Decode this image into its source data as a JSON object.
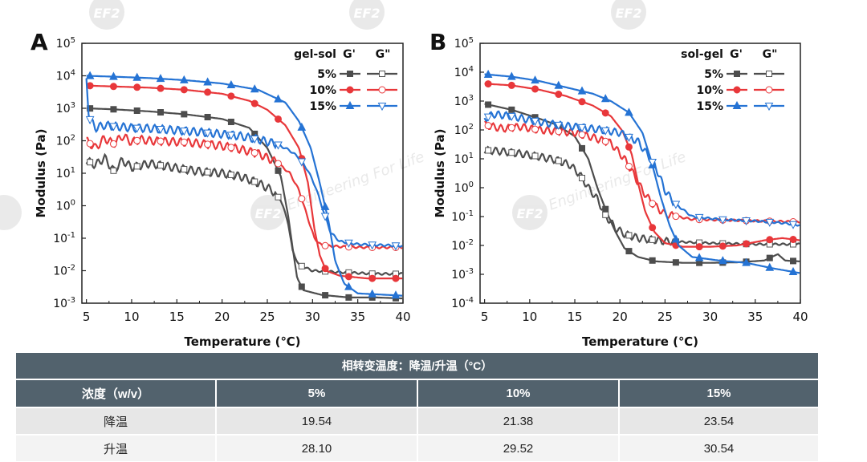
{
  "chart_data": [
    {
      "panel_label": "A",
      "type": "line",
      "xlabel": "Temperature (℃)",
      "ylabel": "Modulus (Pa)",
      "xlim": [
        4.5,
        40
      ],
      "xticks": [
        "5",
        "10",
        "15",
        "20",
        "25",
        "30",
        "35",
        "40"
      ],
      "ylim_log10": [
        -3,
        5
      ],
      "yticks": [
        {
          "base": "10",
          "exp": "5"
        },
        {
          "base": "10",
          "exp": "4"
        },
        {
          "base": "10",
          "exp": "3"
        },
        {
          "base": "10",
          "exp": "2"
        },
        {
          "base": "10",
          "exp": "1"
        },
        {
          "base": "10",
          "exp": "0"
        },
        {
          "base": "10",
          "exp": "-1"
        },
        {
          "base": "10",
          "exp": "-2"
        },
        {
          "base": "10",
          "exp": "-3"
        }
      ],
      "legend_title": "gel-sol",
      "legend_cols": [
        "G'",
        "G\""
      ],
      "series": [
        {
          "name": "5%",
          "color": "#4d4d4d",
          "gp": [
            [
              5,
              1000
            ],
            [
              8,
              930
            ],
            [
              12,
              800
            ],
            [
              16,
              650
            ],
            [
              20,
              470
            ],
            [
              23,
              250
            ],
            [
              25,
              60
            ],
            [
              26.5,
              8
            ],
            [
              27.3,
              0.5
            ],
            [
              27.8,
              0.05
            ],
            [
              28.3,
              0.006
            ],
            [
              29,
              0.0025
            ],
            [
              31,
              0.0018
            ],
            [
              34,
              0.0015
            ],
            [
              37,
              0.0015
            ],
            [
              40,
              0.0014
            ]
          ],
          "gpp": [
            [
              5,
              25
            ],
            [
              6,
              18
            ],
            [
              7,
              30
            ],
            [
              8,
              12
            ],
            [
              9,
              25
            ],
            [
              10,
              15
            ],
            [
              12,
              20
            ],
            [
              14,
              16
            ],
            [
              16,
              13
            ],
            [
              18,
              11
            ],
            [
              20,
              10
            ],
            [
              22,
              8
            ],
            [
              24,
              5
            ],
            [
              25.5,
              3
            ],
            [
              26.5,
              1.5
            ],
            [
              27.3,
              0.3
            ],
            [
              27.8,
              0.04
            ],
            [
              28.5,
              0.015
            ],
            [
              30,
              0.01
            ],
            [
              33,
              0.009
            ],
            [
              37,
              0.008
            ],
            [
              40,
              0.008
            ]
          ]
        },
        {
          "name": "10%",
          "color": "#e8373a",
          "gp": [
            [
              5,
              5000
            ],
            [
              8,
              4700
            ],
            [
              12,
              4300
            ],
            [
              16,
              3700
            ],
            [
              20,
              2800
            ],
            [
              23,
              1700
            ],
            [
              25,
              900
            ],
            [
              27,
              300
            ],
            [
              28.5,
              60
            ],
            [
              29.5,
              5
            ],
            [
              30.2,
              0.2
            ],
            [
              30.8,
              0.03
            ],
            [
              31.5,
              0.01
            ],
            [
              33,
              0.007
            ],
            [
              36,
              0.0058
            ],
            [
              40,
              0.0058
            ]
          ],
          "gpp": [
            [
              5,
              100
            ],
            [
              6,
              60
            ],
            [
              7,
              120
            ],
            [
              8,
              80
            ],
            [
              9,
              140
            ],
            [
              10,
              90
            ],
            [
              11,
              110
            ],
            [
              12,
              100
            ],
            [
              14,
              95
            ],
            [
              16,
              90
            ],
            [
              18,
              80
            ],
            [
              20,
              70
            ],
            [
              22,
              55
            ],
            [
              24,
              40
            ],
            [
              26,
              22
            ],
            [
              27.5,
              10
            ],
            [
              28.5,
              3
            ],
            [
              29.5,
              0.4
            ],
            [
              30.2,
              0.1
            ],
            [
              31,
              0.06
            ],
            [
              33,
              0.055
            ],
            [
              36,
              0.052
            ],
            [
              40,
              0.052
            ]
          ]
        },
        {
          "name": "15%",
          "color": "#2573d4",
          "gp": [
            [
              5,
              10000
            ],
            [
              8,
              9400
            ],
            [
              12,
              8500
            ],
            [
              16,
              7300
            ],
            [
              20,
              5800
            ],
            [
              24,
              3700
            ],
            [
              27,
              1500
            ],
            [
              28.5,
              400
            ],
            [
              29.8,
              60
            ],
            [
              30.8,
              5
            ],
            [
              31.8,
              0.3
            ],
            [
              32.5,
              0.02
            ],
            [
              33.5,
              0.004
            ],
            [
              35,
              0.002
            ],
            [
              40,
              0.0017
            ]
          ],
          "gpp": [
            [
              5,
              8000
            ],
            [
              5.3,
              500
            ],
            [
              6,
              250
            ],
            [
              7,
              300
            ],
            [
              8,
              280
            ],
            [
              10,
              250
            ],
            [
              12,
              240
            ],
            [
              14,
              220
            ],
            [
              16,
              200
            ],
            [
              18,
              180
            ],
            [
              20,
              160
            ],
            [
              22,
              140
            ],
            [
              24,
              110
            ],
            [
              26,
              80
            ],
            [
              27.5,
              50
            ],
            [
              28.5,
              30
            ],
            [
              29.5,
              12
            ],
            [
              30.3,
              4
            ],
            [
              31.2,
              0.7
            ],
            [
              32,
              0.15
            ],
            [
              33,
              0.08
            ],
            [
              35,
              0.065
            ],
            [
              40,
              0.058
            ]
          ]
        }
      ]
    },
    {
      "panel_label": "B",
      "type": "line",
      "xlabel": "Temperature (℃)",
      "ylabel": "Modulus (Pa)",
      "xlim": [
        4.5,
        40
      ],
      "xticks": [
        "5",
        "10",
        "15",
        "20",
        "25",
        "30",
        "35",
        "40"
      ],
      "ylim_log10": [
        -4,
        5
      ],
      "yticks": [
        {
          "base": "10",
          "exp": "5"
        },
        {
          "base": "10",
          "exp": "4"
        },
        {
          "base": "10",
          "exp": "3"
        },
        {
          "base": "10",
          "exp": "2"
        },
        {
          "base": "10",
          "exp": "1"
        },
        {
          "base": "10",
          "exp": "0"
        },
        {
          "base": "10",
          "exp": "-1"
        },
        {
          "base": "10",
          "exp": "-2"
        },
        {
          "base": "10",
          "exp": "-3"
        },
        {
          "base": "10",
          "exp": "-4"
        }
      ],
      "legend_title": "sol-gel",
      "legend_cols": [
        "G'",
        "G\""
      ],
      "series": [
        {
          "name": "5%",
          "color": "#4d4d4d",
          "gp": [
            [
              5,
              800
            ],
            [
              8,
              500
            ],
            [
              11,
              250
            ],
            [
              13,
              150
            ],
            [
              15,
              60
            ],
            [
              16.5,
              10
            ],
            [
              17.5,
              1
            ],
            [
              18.5,
              0.15
            ],
            [
              19.5,
              0.03
            ],
            [
              20.5,
              0.008
            ],
            [
              22,
              0.004
            ],
            [
              24,
              0.0028
            ],
            [
              27,
              0.0025
            ],
            [
              30,
              0.0025
            ],
            [
              33,
              0.0026
            ],
            [
              36,
              0.003
            ],
            [
              37.5,
              0.005
            ],
            [
              38.3,
              0.003
            ],
            [
              40,
              0.0028
            ]
          ],
          "gpp": [
            [
              5,
              20
            ],
            [
              7,
              18
            ],
            [
              9,
              15
            ],
            [
              11,
              12
            ],
            [
              13,
              9
            ],
            [
              14.5,
              6
            ],
            [
              15.5,
              3
            ],
            [
              16.5,
              1
            ],
            [
              17.5,
              0.4
            ],
            [
              18.5,
              0.1
            ],
            [
              19.5,
              0.04
            ],
            [
              20.5,
              0.025
            ],
            [
              22,
              0.018
            ],
            [
              25,
              0.014
            ],
            [
              30,
              0.012
            ],
            [
              35,
              0.011
            ],
            [
              40,
              0.011
            ]
          ]
        },
        {
          "name": "10%",
          "color": "#e8373a",
          "gp": [
            [
              5,
              4000
            ],
            [
              8,
              3500
            ],
            [
              11,
              2500
            ],
            [
              14,
              1500
            ],
            [
              17,
              700
            ],
            [
              19,
              300
            ],
            [
              20.3,
              90
            ],
            [
              21.3,
              15
            ],
            [
              22,
              1.5
            ],
            [
              22.8,
              0.15
            ],
            [
              23.8,
              0.03
            ],
            [
              25,
              0.012
            ],
            [
              27,
              0.009
            ],
            [
              30,
              0.009
            ],
            [
              33,
              0.01
            ],
            [
              36,
              0.015
            ],
            [
              38,
              0.018
            ],
            [
              40,
              0.015
            ]
          ],
          "gpp": [
            [
              5,
              150
            ],
            [
              7,
              110
            ],
            [
              9,
              130
            ],
            [
              11,
              100
            ],
            [
              13,
              90
            ],
            [
              15,
              80
            ],
            [
              17,
              55
            ],
            [
              19,
              35
            ],
            [
              20.5,
              10
            ],
            [
              21.5,
              3
            ],
            [
              22.5,
              0.8
            ],
            [
              23.5,
              0.3
            ],
            [
              25,
              0.12
            ],
            [
              28,
              0.08
            ],
            [
              32,
              0.075
            ],
            [
              36,
              0.07
            ],
            [
              40,
              0.065
            ]
          ]
        },
        {
          "name": "15%",
          "color": "#2573d4",
          "gp": [
            [
              5,
              8500
            ],
            [
              8,
              7000
            ],
            [
              11,
              5000
            ],
            [
              14,
              3000
            ],
            [
              17,
              1800
            ],
            [
              19,
              1000
            ],
            [
              21,
              400
            ],
            [
              22.5,
              80
            ],
            [
              23.5,
              8
            ],
            [
              24.5,
              0.5
            ],
            [
              25.5,
              0.05
            ],
            [
              26.5,
              0.01
            ],
            [
              28,
              0.004
            ],
            [
              31,
              0.003
            ],
            [
              34,
              0.0025
            ],
            [
              37,
              0.0016
            ],
            [
              40,
              0.0011
            ]
          ],
          "gpp": [
            [
              5,
              250
            ],
            [
              6,
              350
            ],
            [
              8,
              300
            ],
            [
              10,
              220
            ],
            [
              13,
              150
            ],
            [
              16,
              120
            ],
            [
              18,
              100
            ],
            [
              20,
              80
            ],
            [
              22,
              40
            ],
            [
              23.2,
              12
            ],
            [
              24,
              5
            ],
            [
              25,
              0.8
            ],
            [
              26,
              0.3
            ],
            [
              28,
              0.1
            ],
            [
              31,
              0.08
            ],
            [
              35,
              0.07
            ],
            [
              38,
              0.06
            ],
            [
              40,
              0.05
            ]
          ]
        }
      ]
    }
  ],
  "table": {
    "title": "相转变温度：降温/升温（°C）",
    "header": [
      "浓度（w/v）",
      "5%",
      "10%",
      "15%"
    ],
    "rows": [
      [
        "降温",
        "19.54",
        "21.38",
        "23.54"
      ],
      [
        "升温",
        "28.10",
        "29.52",
        "30.54"
      ]
    ]
  },
  "watermark": {
    "logo": "EF2",
    "text": "Engineering For Life"
  }
}
